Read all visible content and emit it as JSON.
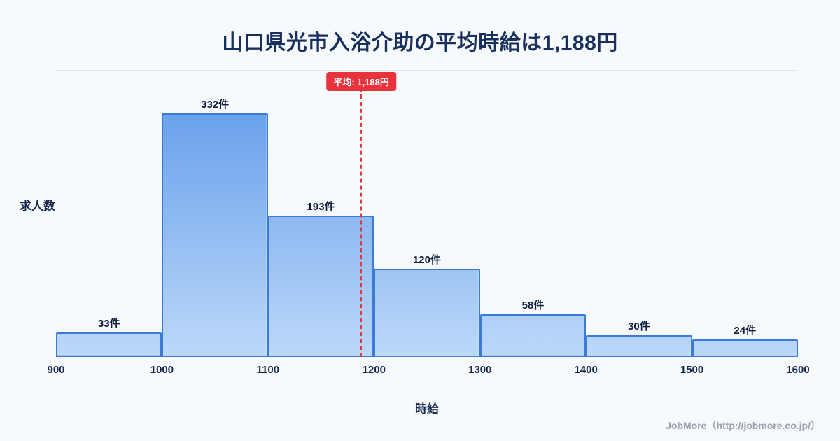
{
  "title": "山口県光市入浴介助の平均時給は1,188円",
  "chart_data": {
    "type": "bar",
    "subtype": "histogram",
    "bin_edges": [
      900,
      1000,
      1100,
      1200,
      1300,
      1400,
      1500,
      1600
    ],
    "values": [
      33,
      332,
      193,
      120,
      58,
      30,
      24
    ],
    "bar_labels": [
      "33件",
      "332件",
      "193件",
      "120件",
      "58件",
      "30件",
      "24件"
    ],
    "average": 1188,
    "average_label": "平均: 1,188円",
    "xlabel": "時給",
    "ylabel": "求人数",
    "xlim": [
      900,
      1600
    ],
    "ylim": [
      0,
      390
    ],
    "grid": false,
    "legend": "none",
    "colors": {
      "background": "#f7fafd",
      "title": "#19305f",
      "bar_fill_top": "#5b97e8",
      "bar_fill_bottom": "#bcd8fa",
      "bar_border": "#3a7bd8",
      "average_line": "#e23a3f",
      "badge_bg": "#e8323c",
      "badge_text": "#ffffff"
    }
  },
  "footer": {
    "credit": "JobMore（http://jobmore.co.jp/）"
  }
}
